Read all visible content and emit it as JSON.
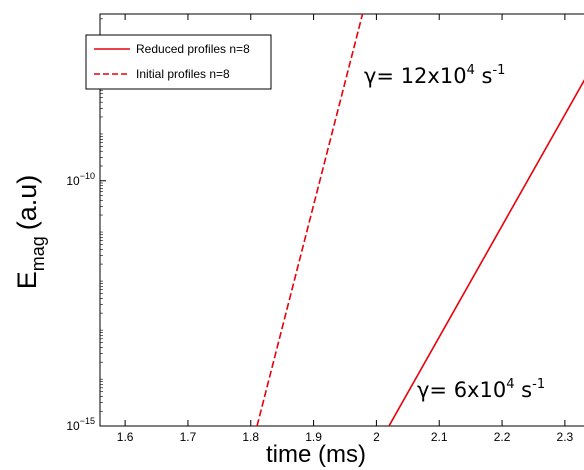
{
  "chart_data": {
    "type": "line",
    "xlabel": "time (ms)",
    "ylabel_main": "E",
    "ylabel_sub": "mag",
    "ylabel_units": "(a.u)",
    "xlim": [
      1.56,
      2.34
    ],
    "ylim_log10": [
      -15,
      -6.6
    ],
    "yscale": "log",
    "x_ticks": [
      {
        "value": 1.6,
        "label": "1.6"
      },
      {
        "value": 1.7,
        "label": "1.7"
      },
      {
        "value": 1.8,
        "label": "1.8"
      },
      {
        "value": 1.9,
        "label": "1.9"
      },
      {
        "value": 2.0,
        "label": "2"
      },
      {
        "value": 2.1,
        "label": "2.1"
      },
      {
        "value": 2.2,
        "label": "2.2"
      },
      {
        "value": 2.3,
        "label": "2.3"
      }
    ],
    "y_ticks": [
      {
        "exp": -10,
        "base": "10",
        "sup": "−10"
      },
      {
        "exp": -15,
        "base": "10",
        "sup": "−15"
      }
    ],
    "legend": {
      "placement": "top-left",
      "entries": [
        {
          "label": "Reduced profiles n=8",
          "style": "solid"
        },
        {
          "label": "Initial profiles n=8",
          "style": "dashed"
        }
      ]
    },
    "series": [
      {
        "name": "Reduced profiles n=8",
        "style": "solid",
        "color": "#e8000b",
        "x": [
          2.02,
          2.34
        ],
        "y": [
          1e-15,
          1.8e-08
        ]
      },
      {
        "name": "Initial profiles n=8",
        "style": "dashed",
        "color": "#e8000b",
        "x": [
          1.81,
          1.98
        ],
        "y": [
          1e-15,
          3.2e-07
        ]
      }
    ],
    "annotations": [
      {
        "id": "a1",
        "prefix": "γ= 12x10",
        "sup": "4",
        "suffix": " s",
        "sup2": "-1"
      },
      {
        "id": "a2",
        "prefix": "γ= 6x10",
        "sup": "4",
        "suffix": " s",
        "sup2": "-1"
      }
    ]
  }
}
